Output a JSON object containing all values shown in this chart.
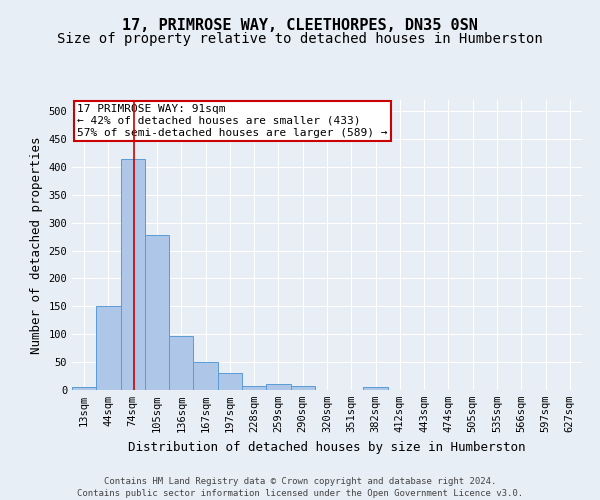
{
  "title": "17, PRIMROSE WAY, CLEETHORPES, DN35 0SN",
  "subtitle": "Size of property relative to detached houses in Humberston",
  "xlabel": "Distribution of detached houses by size in Humberston",
  "ylabel": "Number of detached properties",
  "footer_line1": "Contains HM Land Registry data © Crown copyright and database right 2024.",
  "footer_line2": "Contains public sector information licensed under the Open Government Licence v3.0.",
  "categories": [
    "13sqm",
    "44sqm",
    "74sqm",
    "105sqm",
    "136sqm",
    "167sqm",
    "197sqm",
    "228sqm",
    "259sqm",
    "290sqm",
    "320sqm",
    "351sqm",
    "382sqm",
    "412sqm",
    "443sqm",
    "474sqm",
    "505sqm",
    "535sqm",
    "566sqm",
    "597sqm",
    "627sqm"
  ],
  "values": [
    5,
    150,
    415,
    278,
    96,
    50,
    30,
    8,
    10,
    8,
    0,
    0,
    5,
    0,
    0,
    0,
    0,
    0,
    0,
    0,
    0
  ],
  "bar_color": "#aec6e8",
  "bar_edge_color": "#5b9bd5",
  "red_line_index": 2,
  "property_label": "17 PRIMROSE WAY: 91sqm",
  "annotation_line1": "← 42% of detached houses are smaller (433)",
  "annotation_line2": "57% of semi-detached houses are larger (589) →",
  "annotation_box_color": "#ffffff",
  "annotation_box_edge": "#cc0000",
  "ylim": [
    0,
    520
  ],
  "yticks": [
    0,
    50,
    100,
    150,
    200,
    250,
    300,
    350,
    400,
    450,
    500
  ],
  "background_color": "#e8eef5",
  "axes_background": "#e8eef5",
  "grid_color": "#ffffff",
  "title_fontsize": 11,
  "subtitle_fontsize": 10,
  "ylabel_fontsize": 9,
  "xlabel_fontsize": 9,
  "tick_fontsize": 7.5,
  "annotation_fontsize": 8,
  "footer_fontsize": 6.5
}
